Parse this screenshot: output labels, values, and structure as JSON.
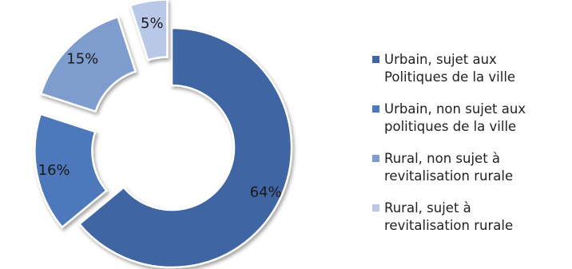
{
  "chart_data": {
    "type": "pie",
    "style": "exploded-donut",
    "series": [
      {
        "name": "Urbain, sujet aux\nPolitiques de la ville",
        "value": 64,
        "label": "64%",
        "color": "#3f65a3"
      },
      {
        "name": "Urbain, non sujet aux\npolitiques de la ville",
        "value": 16,
        "label": "16%",
        "color": "#4d78bb"
      },
      {
        "name": "Rural, non sujet à\nrevitalisation rurale",
        "value": 15,
        "label": "15%",
        "color": "#7f9ccf"
      },
      {
        "name": "Rural, sujet à\nrevitalisation rurale",
        "value": 5,
        "label": "5%",
        "color": "#b8c8e6"
      }
    ],
    "legend_position": "right"
  }
}
